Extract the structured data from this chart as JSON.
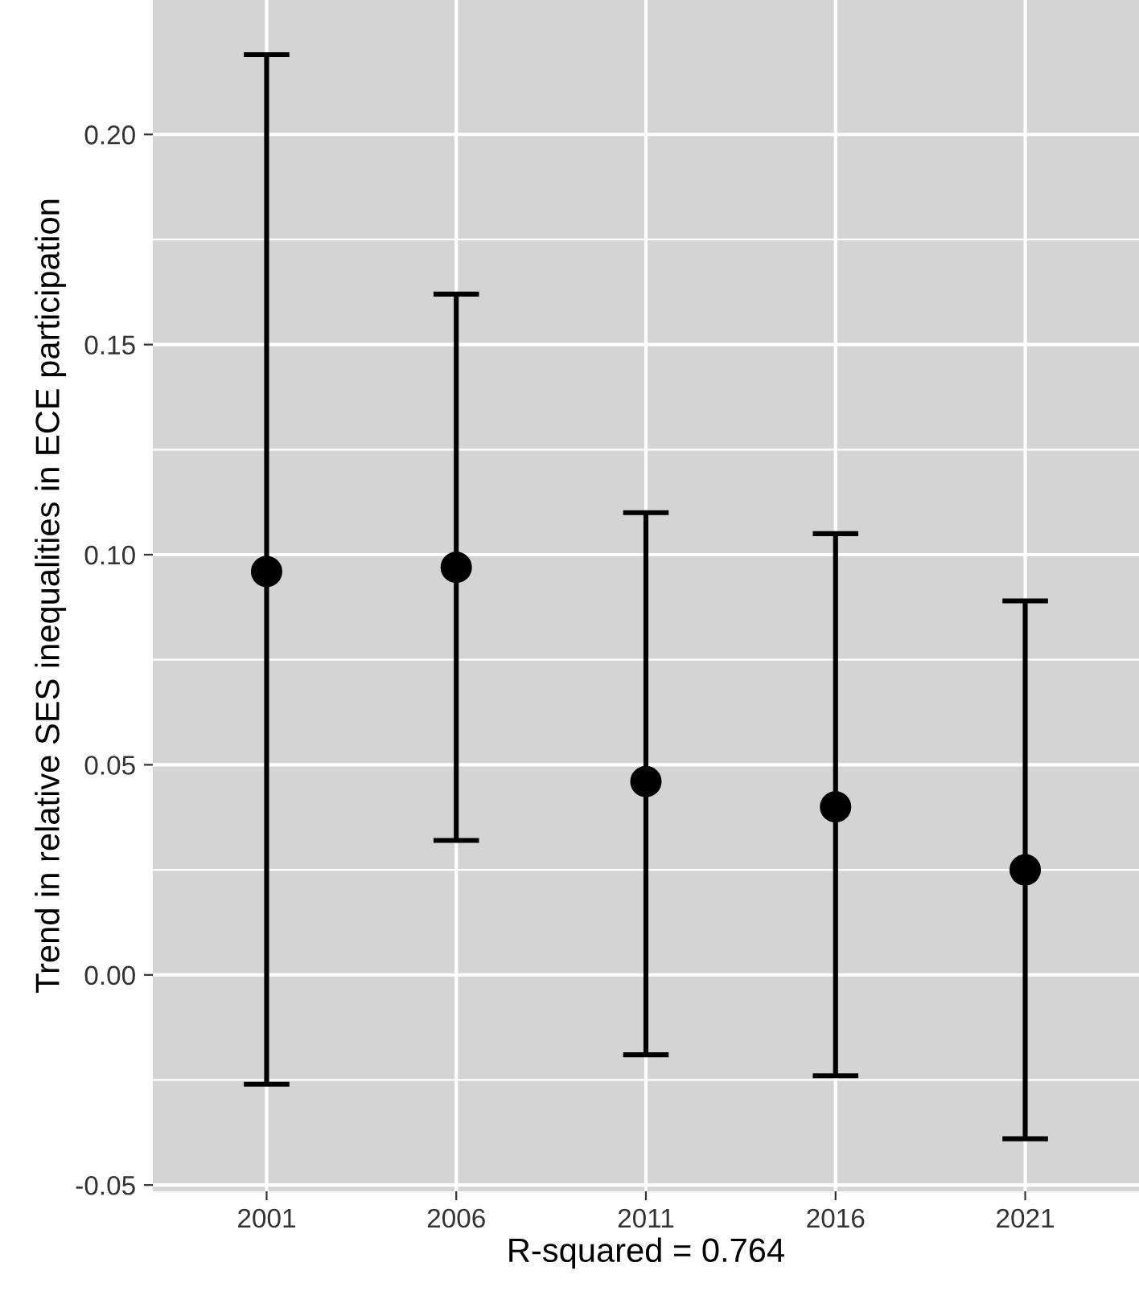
{
  "chart_data": {
    "type": "scatter",
    "categories": [
      "2001",
      "2006",
      "2011",
      "2016",
      "2021"
    ],
    "series": [
      {
        "color": "#000000",
        "values": [
          0.096,
          0.097,
          0.046,
          0.04,
          0.025
        ],
        "errors": [
          [
            -0.026,
            0.219
          ],
          [
            0.032,
            0.162
          ],
          [
            -0.019,
            0.11
          ],
          [
            -0.024,
            0.105
          ],
          [
            -0.039,
            0.089
          ]
        ]
      }
    ],
    "xlabel": "R-squared = 0.764",
    "ylabel": "Trend in relative SES inequalities in ECE participation",
    "ylim": [
      -0.0515,
      0.232
    ],
    "yticks": [
      {
        "value": -0.05,
        "label": "-0.05"
      },
      {
        "value": 0.0,
        "label": "0.00"
      },
      {
        "value": 0.05,
        "label": "0.05"
      },
      {
        "value": 0.1,
        "label": "0.10"
      },
      {
        "value": 0.15,
        "label": "0.15"
      },
      {
        "value": 0.2,
        "label": "0.20"
      }
    ],
    "grid": true,
    "marker": "circle"
  }
}
